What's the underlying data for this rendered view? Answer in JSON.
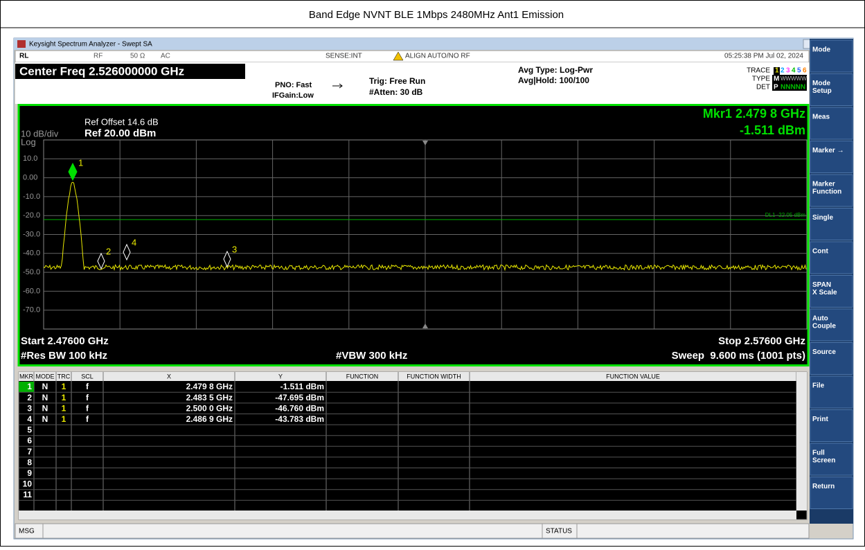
{
  "page_title": "Band Edge NVNT BLE 1Mbps 2480MHz Ant1 Emission",
  "window_title": "Keysight Spectrum Analyzer - Swept SA",
  "status_bar": {
    "rl": "RL",
    "rf": "RF",
    "impedance": "50 Ω",
    "coupling": "AC",
    "sense": "SENSE:INT",
    "align": "ALIGN AUTO/NO RF",
    "datetime": "05:25:38 PM Jul 02, 2024"
  },
  "header": {
    "center_freq": "Center Freq 2.526000000 GHz",
    "pno": "PNO: Fast",
    "ifgain": "IFGain:Low",
    "trig": "Trig: Free Run",
    "atten": "#Atten: 30 dB",
    "avg_type": "Avg Type: Log-Pwr",
    "avg_hold": "Avg|Hold: 100/100",
    "trace_label": "TRACE",
    "trace_digits": [
      "1",
      "2",
      "3",
      "4",
      "5",
      "6"
    ],
    "type_label": "TYPE",
    "type_values": [
      "M",
      "WWWWW"
    ],
    "det_label": "DET",
    "det_values": [
      "P",
      "NNNNN"
    ]
  },
  "plot": {
    "ref_offset": "Ref Offset 14.6 dB",
    "ref_level": "Ref 20.00 dBm",
    "scale": "10 dB/div",
    "log": "Log",
    "y_labels": [
      "10.0",
      "0.00",
      "-10.0",
      "-20.0",
      "-30.0",
      "-40.0",
      "-50.0",
      "-60.0",
      "-70.0"
    ],
    "marker_freq": "Mkr1 2.479 8 GHz",
    "marker_amp": "-1.511 dBm",
    "display_line": "DL1 -22.05 dBm",
    "marker_labels": [
      "1",
      "2",
      "3",
      "4"
    ],
    "start": "Start 2.47600 GHz",
    "res_bw": "#Res BW 100 kHz",
    "vbw": "#VBW 300 kHz",
    "stop": "Stop 2.57600 GHz",
    "sweep": "Sweep  9.600 ms (1001 pts)"
  },
  "softkeys": [
    [
      "Mode"
    ],
    [
      "Mode",
      "Setup"
    ],
    [
      "Meas"
    ],
    [
      "Marker →"
    ],
    [
      "Marker",
      "Function"
    ],
    [
      "Single"
    ],
    [
      "Cont"
    ],
    [
      "SPAN",
      "X Scale"
    ],
    [
      "Auto",
      "Couple"
    ],
    [
      "Source"
    ],
    [
      "File"
    ],
    [
      "Print"
    ],
    [
      "Full",
      "Screen"
    ],
    [
      "Return"
    ]
  ],
  "table": {
    "headers": [
      "MKR",
      "MODE",
      "TRC",
      "SCL",
      "X",
      "Y",
      "FUNCTION",
      "FUNCTION WIDTH",
      "FUNCTION VALUE"
    ],
    "rows": [
      [
        "1",
        "N",
        "1",
        "f",
        "2.479 8 GHz",
        "-1.511 dBm"
      ],
      [
        "2",
        "N",
        "1",
        "f",
        "2.483 5 GHz",
        "-47.695 dBm"
      ],
      [
        "3",
        "N",
        "1",
        "f",
        "2.500 0 GHz",
        "-46.760 dBm"
      ],
      [
        "4",
        "N",
        "1",
        "f",
        "2.486 9 GHz",
        "-43.783 dBm"
      ],
      [
        "5"
      ],
      [
        "6"
      ],
      [
        "7"
      ],
      [
        "8"
      ],
      [
        "9"
      ],
      [
        "10"
      ],
      [
        "11"
      ]
    ]
  },
  "footer": {
    "msg": "MSG",
    "status": "STATUS"
  }
}
